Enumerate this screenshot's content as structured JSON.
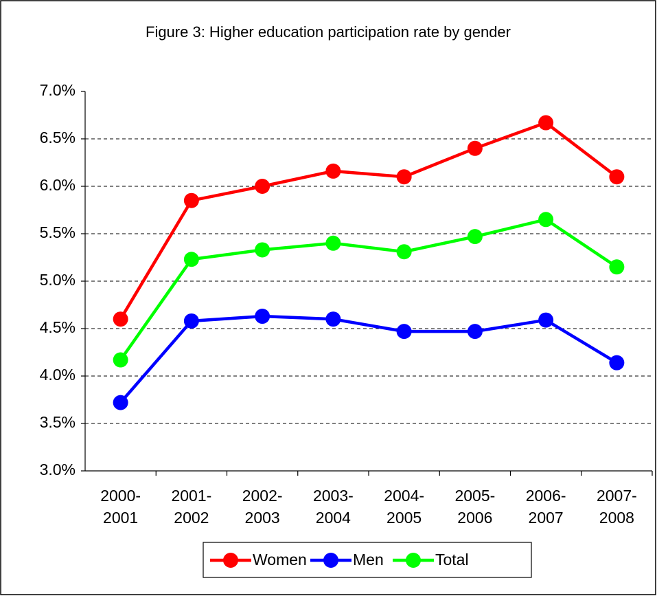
{
  "chart_data": {
    "type": "line",
    "title": "Figure 3: Higher education participation rate by gender",
    "categories": [
      "2000-\n2001",
      "2001-\n2002",
      "2002-\n2003",
      "2003-\n2004",
      "2004-\n2005",
      "2005-\n2006",
      "2006-\n2007",
      "2007-\n2008"
    ],
    "series": [
      {
        "name": "Women",
        "color": "#ff0000",
        "values": [
          4.6,
          5.85,
          6.0,
          6.16,
          6.1,
          6.4,
          6.67,
          6.1
        ]
      },
      {
        "name": "Men",
        "color": "#0000ff",
        "values": [
          3.72,
          4.58,
          4.63,
          4.6,
          4.47,
          4.47,
          4.59,
          4.14
        ]
      },
      {
        "name": "Total",
        "color": "#00ff00",
        "values": [
          4.17,
          5.23,
          5.33,
          5.4,
          5.31,
          5.47,
          5.65,
          5.15
        ]
      }
    ],
    "ylim": [
      3.0,
      7.0
    ],
    "yticks": [
      {
        "value": 3.0,
        "label": "3.0%"
      },
      {
        "value": 3.5,
        "label": "3.5%"
      },
      {
        "value": 4.0,
        "label": "4.0%"
      },
      {
        "value": 4.5,
        "label": "4.5%"
      },
      {
        "value": 5.0,
        "label": "5.0%"
      },
      {
        "value": 5.5,
        "label": "5.5%"
      },
      {
        "value": 6.0,
        "label": "6.0%"
      },
      {
        "value": 6.5,
        "label": "6.5%"
      },
      {
        "value": 7.0,
        "label": "7.0%"
      }
    ],
    "grid": true,
    "legend": "bottom"
  }
}
